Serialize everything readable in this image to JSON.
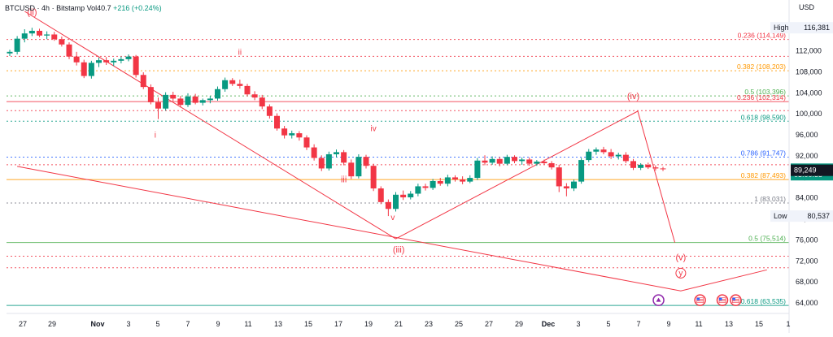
{
  "header": {
    "symbol": "BTCUSD",
    "interval": "4h",
    "exchange": "Bitstamp",
    "volume": "Vol40.7",
    "change": "+216 (+0.24%)"
  },
  "currency": "USD",
  "chart_data": {
    "type": "candlestick",
    "x_ticks": [
      "27",
      "29",
      "Nov",
      "3",
      "5",
      "7",
      "9",
      "11",
      "13",
      "15",
      "17",
      "19",
      "21",
      "23",
      "25",
      "27",
      "29",
      "Dec",
      "3",
      "5",
      "7",
      "9",
      "11",
      "13",
      "15",
      "1"
    ],
    "y_ticks": [
      "112,000",
      "108,000",
      "104,000",
      "100,000",
      "96,000",
      "92,000",
      "88,000",
      "84,000",
      "80,000",
      "76,000",
      "72,000",
      "68,000",
      "64,000"
    ],
    "y_range": [
      62000,
      119500
    ],
    "colors": {
      "up": "#089981",
      "down": "#f23645",
      "wave": "#f23645",
      "fib_red": "#f23645",
      "fib_orange": "#ff9800",
      "fib_green": "#4caf50",
      "fib_teal": "#089981",
      "fib_blue": "#2962ff",
      "fib_gray": "#787b86"
    },
    "price_labels": [
      {
        "label": "High",
        "value": "116,381",
        "price": 116381,
        "style": "plain"
      },
      {
        "label": "",
        "value": "89,465",
        "price": 89465,
        "style": "green"
      },
      {
        "label": "",
        "value": "03:00:55",
        "price": 88400,
        "style": "green"
      },
      {
        "label": "",
        "value": "89,249",
        "price": 89249,
        "style": "dark"
      },
      {
        "label": "Low",
        "value": "80,537",
        "price": 80537,
        "style": "plain"
      }
    ],
    "fib_levels": [
      {
        "label": "0.236 (114,149)",
        "price": 114149,
        "color": "#f23645",
        "dash": true
      },
      {
        "label": "",
        "price": 110950,
        "color": "#f23645",
        "dash": true
      },
      {
        "label": "0.382 (108,203)",
        "price": 108203,
        "color": "#ff9800",
        "dash": true
      },
      {
        "label": "0.5 (103,396)",
        "price": 103396,
        "color": "#4caf50",
        "dash": true
      },
      {
        "label": "0.236 (102,314)",
        "price": 102314,
        "color": "#f23645",
        "dash": false
      },
      {
        "label": "",
        "price": 100600,
        "color": "#f23645",
        "dash": true
      },
      {
        "label": "0.618 (98,590)",
        "price": 98590,
        "color": "#089981",
        "dash": true
      },
      {
        "label": "0.786 (91,747)",
        "price": 91747,
        "color": "#2962ff",
        "dash": true
      },
      {
        "label": "",
        "price": 90300,
        "color": "#f23645",
        "dash": true
      },
      {
        "label": "0.382 (87,493)",
        "price": 87493,
        "color": "#ff9800",
        "dash": false
      },
      {
        "label": "1 (83,031)",
        "price": 83031,
        "color": "#787b86",
        "dash": true
      },
      {
        "label": "0.5 (75,514)",
        "price": 75514,
        "color": "#4caf50",
        "dash": false
      },
      {
        "label": "",
        "price": 72900,
        "color": "#f23645",
        "dash": true
      },
      {
        "label": "",
        "price": 70700,
        "color": "#f23645",
        "dash": true
      },
      {
        "label": "0.618 (63,535)",
        "price": 63535,
        "color": "#089981",
        "dash": false
      }
    ],
    "wave_labels": [
      {
        "text": "(ii)",
        "t": 1.5,
        "price": 118800
      },
      {
        "text": "ii",
        "t": 15.5,
        "price": 111200
      },
      {
        "text": "i",
        "t": 9.8,
        "price": 95500
      },
      {
        "text": "iv",
        "t": 24.5,
        "price": 96700
      },
      {
        "text": "iii",
        "t": 22.5,
        "price": 87000
      },
      {
        "text": "v",
        "t": 25.8,
        "price": 79800
      },
      {
        "text": "(iii)",
        "t": 26.2,
        "price": 73600
      },
      {
        "text": "(iv)",
        "t": 42,
        "price": 102800
      },
      {
        "text": "(v)",
        "t": 45.2,
        "price": 72100
      },
      {
        "text": "y",
        "t": 45.2,
        "price": 69200
      }
    ],
    "wave_lines": [
      [
        [
          1,
          119500
        ],
        [
          26,
          76200
        ],
        [
          42.3,
          100500
        ],
        [
          44.8,
          75500
        ]
      ],
      [
        [
          0.5,
          90000
        ],
        [
          45.2,
          66300
        ],
        [
          51,
          70300
        ]
      ]
    ],
    "candles": [
      {
        "t": 0,
        "o": 111500,
        "h": 112200,
        "l": 111000,
        "c": 111800
      },
      {
        "t": 0.5,
        "o": 111800,
        "h": 114800,
        "l": 111300,
        "c": 114300
      },
      {
        "t": 1,
        "o": 114300,
        "h": 116100,
        "l": 113600,
        "c": 115300
      },
      {
        "t": 1.5,
        "o": 115300,
        "h": 116381,
        "l": 114800,
        "c": 115800
      },
      {
        "t": 2,
        "o": 115800,
        "h": 116200,
        "l": 114600,
        "c": 114900
      },
      {
        "t": 2.5,
        "o": 114900,
        "h": 115700,
        "l": 114200,
        "c": 115100
      },
      {
        "t": 3,
        "o": 115100,
        "h": 115600,
        "l": 113900,
        "c": 114200
      },
      {
        "t": 3.5,
        "o": 114200,
        "h": 114700,
        "l": 112800,
        "c": 113200
      },
      {
        "t": 4,
        "o": 113200,
        "h": 113600,
        "l": 110400,
        "c": 110900
      },
      {
        "t": 4.5,
        "o": 110900,
        "h": 111800,
        "l": 109200,
        "c": 109800
      },
      {
        "t": 5,
        "o": 109800,
        "h": 110300,
        "l": 106800,
        "c": 107200
      },
      {
        "t": 5.5,
        "o": 107200,
        "h": 110100,
        "l": 106700,
        "c": 109700
      },
      {
        "t": 6,
        "o": 109700,
        "h": 110700,
        "l": 108900,
        "c": 110200
      },
      {
        "t": 6.5,
        "o": 110200,
        "h": 110800,
        "l": 109300,
        "c": 109800
      },
      {
        "t": 7,
        "o": 109800,
        "h": 110500,
        "l": 109100,
        "c": 110100
      },
      {
        "t": 7.5,
        "o": 110100,
        "h": 110900,
        "l": 109600,
        "c": 110400
      },
      {
        "t": 8,
        "o": 110400,
        "h": 111300,
        "l": 110000,
        "c": 110900
      },
      {
        "t": 8.5,
        "o": 110900,
        "h": 111200,
        "l": 106900,
        "c": 107400
      },
      {
        "t": 9,
        "o": 107400,
        "h": 107900,
        "l": 104700,
        "c": 105100
      },
      {
        "t": 9.5,
        "o": 105100,
        "h": 105600,
        "l": 101800,
        "c": 102200
      },
      {
        "t": 10,
        "o": 102200,
        "h": 103100,
        "l": 99000,
        "c": 101000
      },
      {
        "t": 10.5,
        "o": 101000,
        "h": 104100,
        "l": 100600,
        "c": 103600
      },
      {
        "t": 11,
        "o": 103600,
        "h": 104200,
        "l": 102400,
        "c": 102900
      },
      {
        "t": 11.5,
        "o": 102900,
        "h": 103400,
        "l": 101200,
        "c": 101700
      },
      {
        "t": 12,
        "o": 101700,
        "h": 103900,
        "l": 101300,
        "c": 103300
      },
      {
        "t": 12.5,
        "o": 103300,
        "h": 103800,
        "l": 101800,
        "c": 102100
      },
      {
        "t": 13,
        "o": 102100,
        "h": 102900,
        "l": 101600,
        "c": 102600
      },
      {
        "t": 13.5,
        "o": 102600,
        "h": 103400,
        "l": 102000,
        "c": 102900
      },
      {
        "t": 14,
        "o": 102900,
        "h": 105200,
        "l": 102500,
        "c": 104700
      },
      {
        "t": 14.5,
        "o": 104700,
        "h": 106900,
        "l": 104200,
        "c": 106400
      },
      {
        "t": 15,
        "o": 106400,
        "h": 106800,
        "l": 105300,
        "c": 105700
      },
      {
        "t": 15.5,
        "o": 105700,
        "h": 106500,
        "l": 104800,
        "c": 105300
      },
      {
        "t": 16,
        "o": 105300,
        "h": 105700,
        "l": 103300,
        "c": 103700
      },
      {
        "t": 16.5,
        "o": 103700,
        "h": 104300,
        "l": 102600,
        "c": 103100
      },
      {
        "t": 17,
        "o": 103100,
        "h": 103600,
        "l": 100900,
        "c": 101400
      },
      {
        "t": 17.5,
        "o": 101400,
        "h": 101800,
        "l": 99100,
        "c": 99600
      },
      {
        "t": 18,
        "o": 99600,
        "h": 100100,
        "l": 96800,
        "c": 97200
      },
      {
        "t": 18.5,
        "o": 97200,
        "h": 97700,
        "l": 95300,
        "c": 95900
      },
      {
        "t": 19,
        "o": 95900,
        "h": 96800,
        "l": 95300,
        "c": 96300
      },
      {
        "t": 19.5,
        "o": 96300,
        "h": 96700,
        "l": 94900,
        "c": 95500
      },
      {
        "t": 20,
        "o": 95500,
        "h": 95900,
        "l": 93100,
        "c": 93600
      },
      {
        "t": 20.5,
        "o": 93600,
        "h": 94200,
        "l": 91100,
        "c": 91600
      },
      {
        "t": 21,
        "o": 91600,
        "h": 92100,
        "l": 89100,
        "c": 89600
      },
      {
        "t": 21.5,
        "o": 89600,
        "h": 92800,
        "l": 89200,
        "c": 92300
      },
      {
        "t": 22,
        "o": 92300,
        "h": 93200,
        "l": 91700,
        "c": 92700
      },
      {
        "t": 22.5,
        "o": 92700,
        "h": 93100,
        "l": 90200,
        "c": 90700
      },
      {
        "t": 23,
        "o": 90700,
        "h": 91300,
        "l": 87600,
        "c": 88100
      },
      {
        "t": 23.5,
        "o": 88100,
        "h": 92300,
        "l": 87700,
        "c": 91800
      },
      {
        "t": 24,
        "o": 91800,
        "h": 92200,
        "l": 89600,
        "c": 90100
      },
      {
        "t": 24.5,
        "o": 90100,
        "h": 90500,
        "l": 85300,
        "c": 85800
      },
      {
        "t": 25,
        "o": 85800,
        "h": 86200,
        "l": 82800,
        "c": 83200
      },
      {
        "t": 25.5,
        "o": 83200,
        "h": 83700,
        "l": 80537,
        "c": 81900
      },
      {
        "t": 26,
        "o": 81900,
        "h": 85100,
        "l": 81400,
        "c": 84600
      },
      {
        "t": 26.5,
        "o": 84600,
        "h": 85400,
        "l": 83600,
        "c": 84100
      },
      {
        "t": 27,
        "o": 84100,
        "h": 85300,
        "l": 83700,
        "c": 84800
      },
      {
        "t": 27.5,
        "o": 84800,
        "h": 86700,
        "l": 84300,
        "c": 86200
      },
      {
        "t": 28,
        "o": 86200,
        "h": 86700,
        "l": 85400,
        "c": 85900
      },
      {
        "t": 28.5,
        "o": 85900,
        "h": 87600,
        "l": 85500,
        "c": 87200
      },
      {
        "t": 29,
        "o": 87200,
        "h": 87800,
        "l": 86300,
        "c": 86700
      },
      {
        "t": 29.5,
        "o": 86700,
        "h": 88400,
        "l": 86200,
        "c": 87900
      },
      {
        "t": 30,
        "o": 87900,
        "h": 88300,
        "l": 87100,
        "c": 87500
      },
      {
        "t": 30.5,
        "o": 87500,
        "h": 88100,
        "l": 86600,
        "c": 87100
      },
      {
        "t": 31,
        "o": 87100,
        "h": 88300,
        "l": 86800,
        "c": 87800
      },
      {
        "t": 31.5,
        "o": 87800,
        "h": 91600,
        "l": 87400,
        "c": 91100
      },
      {
        "t": 32,
        "o": 91100,
        "h": 92100,
        "l": 90200,
        "c": 90700
      },
      {
        "t": 32.5,
        "o": 90700,
        "h": 91900,
        "l": 90300,
        "c": 91400
      },
      {
        "t": 33,
        "o": 91400,
        "h": 91800,
        "l": 90000,
        "c": 90500
      },
      {
        "t": 33.5,
        "o": 90500,
        "h": 92200,
        "l": 90200,
        "c": 91800
      },
      {
        "t": 34,
        "o": 91800,
        "h": 92100,
        "l": 90600,
        "c": 91000
      },
      {
        "t": 34.5,
        "o": 91000,
        "h": 91700,
        "l": 90300,
        "c": 91300
      },
      {
        "t": 35,
        "o": 91300,
        "h": 91700,
        "l": 90100,
        "c": 90500
      },
      {
        "t": 35.5,
        "o": 90500,
        "h": 91200,
        "l": 90100,
        "c": 90900
      },
      {
        "t": 36,
        "o": 90900,
        "h": 91300,
        "l": 90300,
        "c": 90600
      },
      {
        "t": 36.5,
        "o": 90600,
        "h": 91000,
        "l": 89400,
        "c": 89800
      },
      {
        "t": 37,
        "o": 89800,
        "h": 90300,
        "l": 85100,
        "c": 86200
      },
      {
        "t": 37.5,
        "o": 86200,
        "h": 86800,
        "l": 84300,
        "c": 85800
      },
      {
        "t": 38,
        "o": 85800,
        "h": 87500,
        "l": 85300,
        "c": 87100
      },
      {
        "t": 38.5,
        "o": 87100,
        "h": 91600,
        "l": 86700,
        "c": 91200
      },
      {
        "t": 39,
        "o": 91200,
        "h": 93300,
        "l": 90800,
        "c": 92800
      },
      {
        "t": 39.5,
        "o": 92800,
        "h": 93600,
        "l": 92200,
        "c": 93200
      },
      {
        "t": 40,
        "o": 93200,
        "h": 93700,
        "l": 92300,
        "c": 92700
      },
      {
        "t": 40.5,
        "o": 92700,
        "h": 93300,
        "l": 91400,
        "c": 91900
      },
      {
        "t": 41,
        "o": 91900,
        "h": 92600,
        "l": 91300,
        "c": 92200
      },
      {
        "t": 41.5,
        "o": 92200,
        "h": 92700,
        "l": 90600,
        "c": 91000
      },
      {
        "t": 42,
        "o": 91000,
        "h": 91400,
        "l": 89300,
        "c": 89700
      },
      {
        "t": 42.5,
        "o": 89700,
        "h": 90600,
        "l": 89300,
        "c": 90300
      },
      {
        "t": 43,
        "o": 90300,
        "h": 90700,
        "l": 89500,
        "c": 89800
      },
      {
        "t": 43.5,
        "o": 89800,
        "h": 90200,
        "l": 89200,
        "c": 89600
      },
      {
        "t": 44,
        "o": 89600,
        "h": 89900,
        "l": 89100,
        "c": 89465
      }
    ],
    "annotation_icons": [
      {
        "name": "event-icon",
        "t": 43.7,
        "price": 63600,
        "color": "#8e24aa"
      },
      {
        "name": "us-flag-icon",
        "t": 46.5,
        "price": 63600,
        "color": "#f23645"
      },
      {
        "name": "us-flag-icon",
        "t": 48.0,
        "price": 63600,
        "color": "#f23645"
      },
      {
        "name": "us-flag-icon",
        "t": 48.9,
        "price": 63600,
        "color": "#f23645"
      }
    ]
  }
}
